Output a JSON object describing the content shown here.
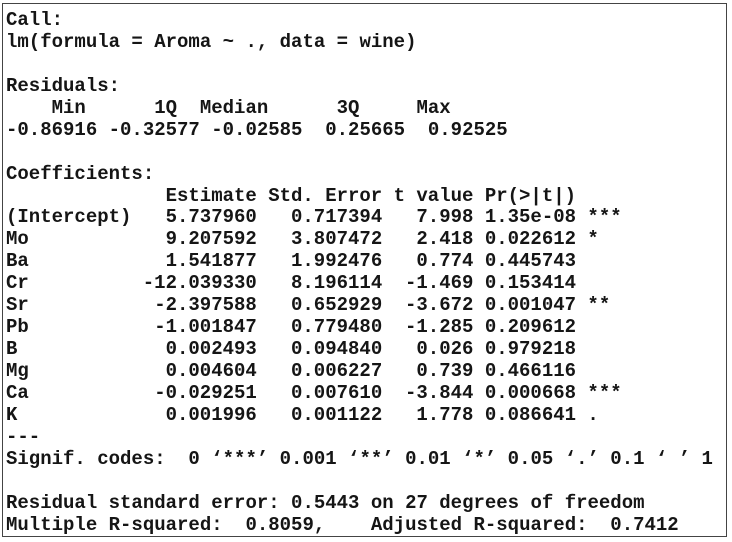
{
  "call_label": "Call:",
  "call": "lm(formula = Aroma ~ ., data = wine)",
  "residuals_label": "Residuals:",
  "residuals_header": "    Min      1Q  Median      3Q     Max ",
  "residuals_values": "-0.86916 -0.32577 -0.02585  0.25665  0.92525 ",
  "coefficients_label": "Coefficients:",
  "coef_header": {
    "name": "",
    "estimate": "Estimate",
    "std_error": "Std. Error",
    "t_value": "t value",
    "p_value": "Pr(>|t|)"
  },
  "coefficients": [
    {
      "name": "(Intercept)",
      "estimate": "5.737960",
      "std_error": "0.717394",
      "t_value": "7.998",
      "p_value": "1.35e-08",
      "signif": "***"
    },
    {
      "name": "Mo",
      "estimate": "9.207592",
      "std_error": "3.807472",
      "t_value": "2.418",
      "p_value": "0.022612",
      "signif": "*"
    },
    {
      "name": "Ba",
      "estimate": "1.541877",
      "std_error": "1.992476",
      "t_value": "0.774",
      "p_value": "0.445743",
      "signif": ""
    },
    {
      "name": "Cr",
      "estimate": "-12.039330",
      "std_error": "8.196114",
      "t_value": "-1.469",
      "p_value": "0.153414",
      "signif": ""
    },
    {
      "name": "Sr",
      "estimate": "-2.397588",
      "std_error": "0.652929",
      "t_value": "-3.672",
      "p_value": "0.001047",
      "signif": "**"
    },
    {
      "name": "Pb",
      "estimate": "-1.001847",
      "std_error": "0.779480",
      "t_value": "-1.285",
      "p_value": "0.209612",
      "signif": ""
    },
    {
      "name": "B",
      "estimate": "0.002493",
      "std_error": "0.094840",
      "t_value": "0.026",
      "p_value": "0.979218",
      "signif": ""
    },
    {
      "name": "Mg",
      "estimate": "0.004604",
      "std_error": "0.006227",
      "t_value": "0.739",
      "p_value": "0.466116",
      "signif": ""
    },
    {
      "name": "Ca",
      "estimate": "-0.029251",
      "std_error": "0.007610",
      "t_value": "-3.844",
      "p_value": "0.000668",
      "signif": "***"
    },
    {
      "name": "K",
      "estimate": "0.001996",
      "std_error": "0.001122",
      "t_value": "1.778",
      "p_value": "0.086641",
      "signif": "."
    }
  ],
  "separator": "---",
  "signif_codes": "Signif. codes:  0 ‘***’ 0.001 ‘**’ 0.01 ‘*’ 0.05 ‘.’ 0.1 ‘ ’ 1",
  "residual_se": "Residual standard error: 0.5443 on 27 degrees of freedom",
  "r_squared": "Multiple R-squared:  0.8059,\tAdjusted R-squared:  0.7412"
}
